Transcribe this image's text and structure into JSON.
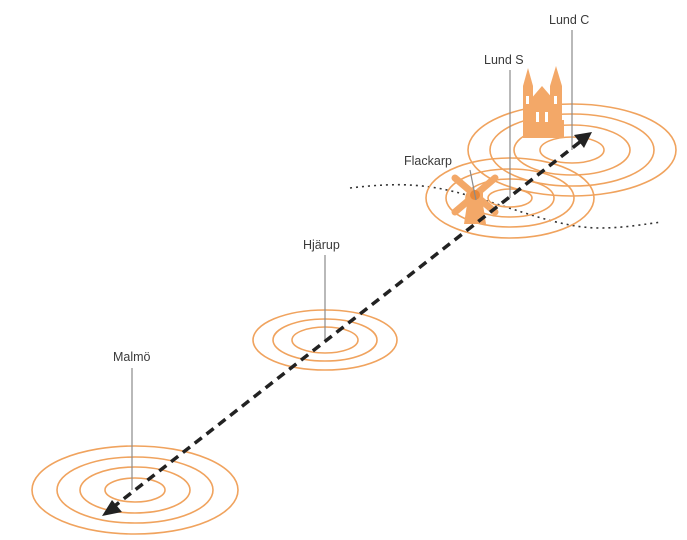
{
  "stations": [
    {
      "id": "malmo",
      "label": "Malmö"
    },
    {
      "id": "hjarup",
      "label": "Hjärup"
    },
    {
      "id": "flackarp",
      "label": "Flackarp"
    },
    {
      "id": "lund_s",
      "label": "Lund S"
    },
    {
      "id": "lund_c",
      "label": "Lund C"
    }
  ],
  "colors": {
    "ring": "#f0a35e",
    "ring_dark": "#e8883a",
    "icon": "#f3a868",
    "route": "#222222",
    "dotted": "#333333",
    "pin": "#8a8a8a"
  },
  "icons": [
    "windmill-icon",
    "cathedral-icon"
  ]
}
